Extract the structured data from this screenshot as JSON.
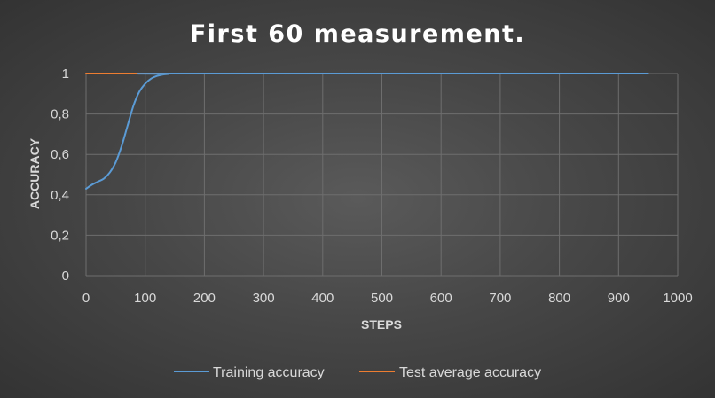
{
  "chart_data": {
    "type": "line",
    "title": "First 60 measurement.",
    "xlabel": "STEPS",
    "ylabel": "ACCURACY",
    "xlim": [
      0,
      1000
    ],
    "ylim": [
      0,
      1
    ],
    "xticks": [
      0,
      100,
      200,
      300,
      400,
      500,
      600,
      700,
      800,
      900,
      1000
    ],
    "yticks": [
      0,
      0.2,
      0.4,
      0.6,
      0.8,
      1
    ],
    "ytick_labels": [
      "0",
      "0,2",
      "0,4",
      "0,6",
      "0,8",
      "1"
    ],
    "grid": true,
    "legend_position": "bottom",
    "series": [
      {
        "name": "Training accuracy",
        "color": "#5b9bd5",
        "x": [
          0,
          10,
          20,
          30,
          40,
          50,
          60,
          70,
          80,
          90,
          100,
          110,
          120,
          130,
          140,
          150,
          950
        ],
        "y": [
          0.43,
          0.45,
          0.465,
          0.48,
          0.51,
          0.56,
          0.64,
          0.74,
          0.84,
          0.91,
          0.95,
          0.975,
          0.988,
          0.995,
          0.998,
          1.0,
          1.0
        ]
      },
      {
        "name": "Test average accuracy",
        "color": "#ed7d31",
        "x": [
          0,
          950
        ],
        "y": [
          1.0,
          1.0
        ]
      }
    ]
  }
}
